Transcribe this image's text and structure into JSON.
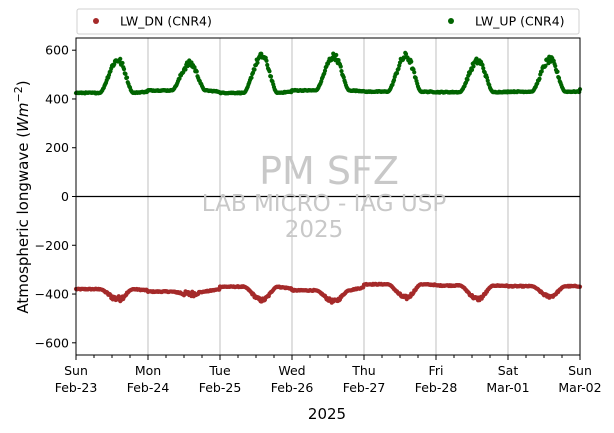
{
  "chart_data": {
    "type": "scatter",
    "title": "",
    "xlabel": "2025",
    "ylabel": "Atmospheric longwave (W m⁻²)",
    "ylabel_text": "Atmospheric longwave (",
    "ylabel_unit": "Wm",
    "ylabel_sup": "−2",
    "ylabel_close": ")",
    "xlim": [
      "2025-02-23 00:00",
      "2025-03-02 00:00"
    ],
    "ylim": [
      -650,
      650
    ],
    "yticks": [
      "600",
      "400",
      "200",
      "0",
      "−200",
      "−400",
      "−600"
    ],
    "ytick_values": [
      600,
      400,
      200,
      0,
      -200,
      -400,
      -600
    ],
    "xticks": [
      {
        "day": "Sun",
        "date": "Feb-23"
      },
      {
        "day": "Mon",
        "date": "Feb-24"
      },
      {
        "day": "Tue",
        "date": "Feb-25"
      },
      {
        "day": "Wed",
        "date": "Feb-26"
      },
      {
        "day": "Thu",
        "date": "Feb-27"
      },
      {
        "day": "Fri",
        "date": "Feb-28"
      },
      {
        "day": "Sat",
        "date": "Mar-01"
      },
      {
        "day": "Sun",
        "date": "Mar-02"
      }
    ],
    "grid": "vertical at day ticks",
    "zero_line": true,
    "legend_placement": "top, above plot, 2 columns",
    "series": [
      {
        "name": "LW_DN (CNR4)",
        "color": "#a52a2a",
        "day_peak_hour": 14,
        "daily": [
          {
            "night": -380,
            "day": -420,
            "noise": 12
          },
          {
            "night": -390,
            "day": -400,
            "noise": 12
          },
          {
            "night": -370,
            "day": -425,
            "noise": 8
          },
          {
            "night": -385,
            "day": -430,
            "noise": 8
          },
          {
            "night": -360,
            "day": -415,
            "noise": 8
          },
          {
            "night": -365,
            "day": -420,
            "noise": 8
          },
          {
            "night": -368,
            "day": -410,
            "noise": 6
          }
        ],
        "end_value": -370
      },
      {
        "name": "LW_UP (CNR4)",
        "color": "#006400",
        "day_peak_hour": 14,
        "daily": [
          {
            "night": 425,
            "day": 560,
            "noise": 14
          },
          {
            "night": 435,
            "day": 545,
            "noise": 14
          },
          {
            "night": 425,
            "day": 575,
            "noise": 14
          },
          {
            "night": 435,
            "day": 575,
            "noise": 14
          },
          {
            "night": 430,
            "day": 575,
            "noise": 16
          },
          {
            "night": 428,
            "day": 555,
            "noise": 14
          },
          {
            "night": 430,
            "day": 560,
            "noise": 14
          }
        ],
        "end_value": 440
      }
    ]
  },
  "watermark": {
    "line1": "PM SFZ",
    "line2": "LAB MICRO - IAG USP",
    "line3": "2025"
  }
}
